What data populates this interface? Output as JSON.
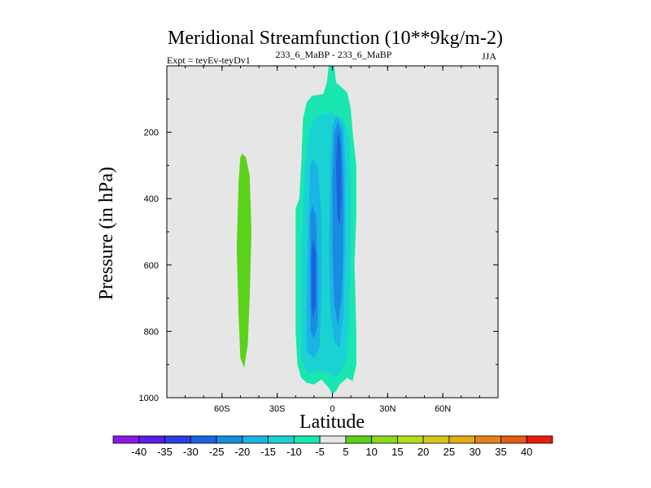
{
  "chart_data": {
    "type": "heatmap",
    "title": "Meridional Streamfunction (10**9kg/m-2)",
    "subtitle_left": "Expt = teyEv-teyDv1",
    "subtitle_center": "233_6_MaBP - 233_6_MaBP",
    "subtitle_right": "JJA",
    "xlabel": "Latitude",
    "ylabel": "Pressure (in hPa)",
    "xlim": [
      -90,
      90
    ],
    "ylim": [
      1000,
      0
    ],
    "x_ticks": [
      {
        "value": -60,
        "label": "60S"
      },
      {
        "value": -30,
        "label": "30S"
      },
      {
        "value": 0,
        "label": "0"
      },
      {
        "value": 30,
        "label": "30N"
      },
      {
        "value": 60,
        "label": "60N"
      }
    ],
    "y_ticks": [
      {
        "value": 200,
        "label": "200"
      },
      {
        "value": 400,
        "label": "400"
      },
      {
        "value": 600,
        "label": "600"
      },
      {
        "value": 800,
        "label": "800"
      },
      {
        "value": 1000,
        "label": "1000"
      }
    ],
    "background_color": "#e6e6e6",
    "colorbar": {
      "levels": [
        "-40",
        "-35",
        "-30",
        "-25",
        "-20",
        "-15",
        "-10",
        "-5",
        "5",
        "10",
        "15",
        "20",
        "25",
        "30",
        "35",
        "40"
      ],
      "colors": [
        "#8c18e6",
        "#5a1ee6",
        "#2b3ee0",
        "#1a64e0",
        "#1a8ce0",
        "#1ab4e6",
        "#1ad2d2",
        "#1ae6b0",
        "#e6e6e6",
        "#5ad21a",
        "#8cd81a",
        "#b4dc1a",
        "#d2c81a",
        "#e6aa1a",
        "#e6821a",
        "#e65a1a",
        "#e61e0a"
      ]
    },
    "features": [
      {
        "name": "positive-cell-south",
        "level": "5 to 10",
        "color": "#5ad21a",
        "outline": [
          [
            -49,
            265
          ],
          [
            -47,
            275
          ],
          [
            -45,
            330
          ],
          [
            -44,
            500
          ],
          [
            -45,
            700
          ],
          [
            -46,
            840
          ],
          [
            -48,
            910
          ],
          [
            -50,
            880
          ],
          [
            -51,
            750
          ],
          [
            -52,
            550
          ],
          [
            -51,
            350
          ],
          [
            -50,
            275
          ]
        ]
      },
      {
        "name": "negative-cell-outer",
        "level": "-10 to -5",
        "color": "#1ae6b0",
        "outline": [
          [
            -2,
            0
          ],
          [
            1,
            0
          ],
          [
            2,
            50
          ],
          [
            8,
            80
          ],
          [
            10,
            130
          ],
          [
            11,
            200
          ],
          [
            13,
            300
          ],
          [
            13,
            450
          ],
          [
            12,
            600
          ],
          [
            13,
            800
          ],
          [
            13,
            900
          ],
          [
            11,
            950
          ],
          [
            8,
            940
          ],
          [
            4,
            960
          ],
          [
            2,
            980
          ],
          [
            0,
            990
          ],
          [
            -2,
            970
          ],
          [
            -6,
            945
          ],
          [
            -10,
            960
          ],
          [
            -14,
            955
          ],
          [
            -17,
            940
          ],
          [
            -19,
            900
          ],
          [
            -20,
            800
          ],
          [
            -20,
            600
          ],
          [
            -20,
            430
          ],
          [
            -18,
            400
          ],
          [
            -17,
            300
          ],
          [
            -16,
            160
          ],
          [
            -14,
            110
          ],
          [
            -11,
            90
          ],
          [
            -5,
            85
          ],
          [
            -3,
            50
          ]
        ]
      },
      {
        "name": "negative-cell-inner",
        "level": "-15 to -10",
        "color": "#1ad2d2",
        "outline": [
          [
            -1,
            140
          ],
          [
            6,
            160
          ],
          [
            9,
            220
          ],
          [
            10,
            350
          ],
          [
            10,
            550
          ],
          [
            9,
            750
          ],
          [
            8,
            880
          ],
          [
            5,
            920
          ],
          [
            1,
            940
          ],
          [
            -3,
            920
          ],
          [
            -8,
            920
          ],
          [
            -13,
            930
          ],
          [
            -17,
            880
          ],
          [
            -17,
            600
          ],
          [
            -16,
            430
          ],
          [
            -15,
            300
          ],
          [
            -13,
            200
          ],
          [
            -9,
            150
          ],
          [
            -4,
            145
          ]
        ]
      },
      {
        "name": "negative-core-west-1",
        "level": "-20 to -15",
        "color": "#1ab4e6",
        "outline": [
          [
            -11,
            280
          ],
          [
            -8,
            300
          ],
          [
            -6,
            450
          ],
          [
            -6,
            700
          ],
          [
            -7,
            850
          ],
          [
            -10,
            880
          ],
          [
            -14,
            860
          ],
          [
            -14,
            700
          ],
          [
            -13,
            450
          ],
          [
            -12,
            300
          ]
        ]
      },
      {
        "name": "negative-core-west-2",
        "level": "-25 to -20",
        "color": "#1a8ce0",
        "outline": [
          [
            -11,
            420
          ],
          [
            -9,
            450
          ],
          [
            -8,
            600
          ],
          [
            -8,
            780
          ],
          [
            -10,
            820
          ],
          [
            -12,
            800
          ],
          [
            -12,
            600
          ],
          [
            -12,
            450
          ]
        ]
      },
      {
        "name": "negative-core-west-3",
        "level": "-30 to -25",
        "color": "#1a64e0",
        "outline": [
          [
            -10.5,
            520
          ],
          [
            -9,
            560
          ],
          [
            -9,
            720
          ],
          [
            -10.5,
            760
          ],
          [
            -11.5,
            720
          ],
          [
            -11.5,
            560
          ]
        ]
      },
      {
        "name": "negative-core-east-1",
        "level": "-20 to -15",
        "color": "#1ab4e6",
        "outline": [
          [
            2,
            150
          ],
          [
            6,
            180
          ],
          [
            7,
            300
          ],
          [
            7,
            550
          ],
          [
            6,
            750
          ],
          [
            4,
            850
          ],
          [
            1,
            830
          ],
          [
            -1,
            750
          ],
          [
            -2,
            550
          ],
          [
            -1,
            300
          ],
          [
            0,
            180
          ]
        ]
      },
      {
        "name": "negative-core-east-2",
        "level": "-25 to -20",
        "color": "#1a8ce0",
        "outline": [
          [
            3,
            170
          ],
          [
            5,
            200
          ],
          [
            6,
            350
          ],
          [
            6,
            550
          ],
          [
            5,
            700
          ],
          [
            3,
            780
          ],
          [
            1,
            720
          ],
          [
            0,
            550
          ],
          [
            0,
            350
          ],
          [
            1,
            200
          ]
        ]
      },
      {
        "name": "negative-core-east-3",
        "level": "-30 to -25",
        "color": "#1a64e0",
        "outline": [
          [
            3,
            200
          ],
          [
            4.5,
            240
          ],
          [
            5,
            400
          ],
          [
            4,
            480
          ],
          [
            2.5,
            450
          ],
          [
            2,
            300
          ],
          [
            2.5,
            230
          ]
        ]
      }
    ]
  }
}
